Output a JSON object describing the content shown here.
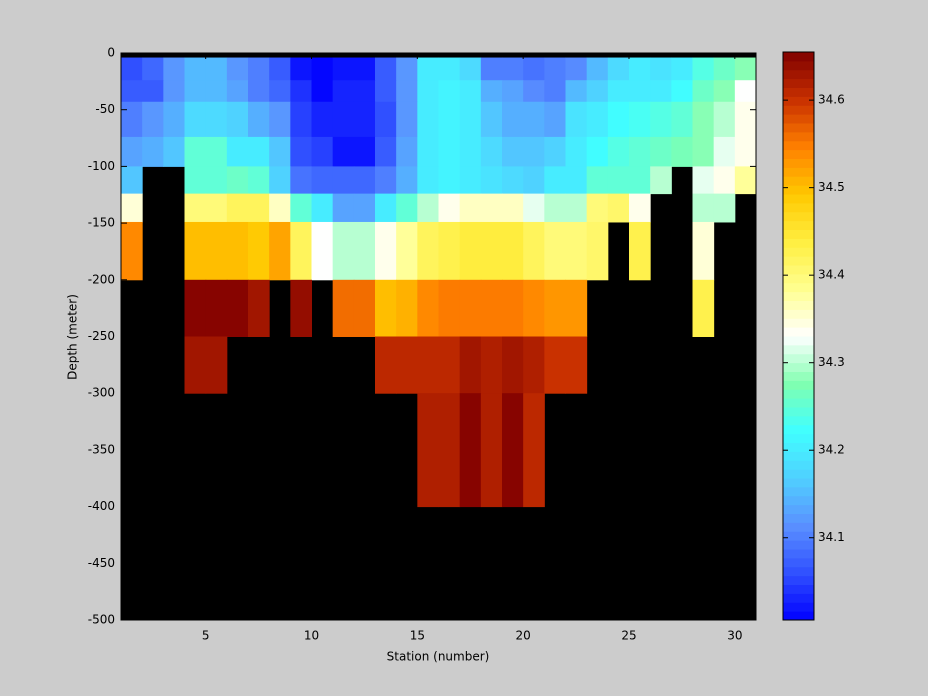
{
  "chart_data": {
    "type": "heatmap",
    "xlabel": "Station (number)",
    "ylabel": "Depth (meter)",
    "x": [
      1,
      2,
      3,
      4,
      5,
      6,
      7,
      8,
      9,
      10,
      11,
      12,
      13,
      14,
      15,
      16,
      17,
      18,
      19,
      20,
      21,
      22,
      23,
      24,
      25,
      26,
      27,
      28,
      29,
      30,
      31
    ],
    "y": [
      0,
      -4,
      -24,
      -43,
      -74,
      -100,
      -124,
      -149,
      -200,
      -250,
      -300,
      -400,
      -500
    ],
    "values": [
      [
        null,
        null,
        null,
        null,
        null,
        null,
        null,
        null,
        null,
        null,
        null,
        null,
        null,
        null,
        null,
        null,
        null,
        null,
        null,
        null,
        null,
        null,
        null,
        null,
        null,
        null,
        null,
        null,
        null,
        null
      ],
      [
        34.06,
        34.08,
        34.12,
        34.15,
        34.15,
        34.12,
        34.1,
        34.07,
        34.02,
        34.01,
        34.02,
        34.02,
        34.07,
        34.12,
        34.2,
        34.2,
        34.18,
        34.1,
        34.1,
        34.09,
        34.1,
        34.11,
        34.15,
        34.18,
        34.2,
        34.19,
        34.2,
        34.24,
        34.26,
        34.28
      ],
      [
        34.07,
        34.07,
        34.12,
        34.15,
        34.15,
        34.13,
        34.1,
        34.08,
        34.04,
        34.01,
        34.03,
        34.03,
        34.07,
        34.12,
        34.2,
        34.21,
        34.2,
        34.14,
        34.13,
        34.11,
        34.1,
        34.15,
        34.17,
        34.2,
        34.2,
        34.2,
        34.22,
        34.26,
        34.28,
        34.33
      ],
      [
        34.1,
        34.12,
        34.14,
        34.18,
        34.18,
        34.17,
        34.14,
        34.12,
        34.05,
        34.03,
        34.03,
        34.03,
        34.06,
        34.12,
        34.2,
        34.21,
        34.2,
        34.16,
        34.14,
        34.14,
        34.13,
        34.19,
        34.2,
        34.22,
        34.23,
        34.24,
        34.25,
        34.28,
        34.3,
        34.34
      ],
      [
        34.13,
        34.14,
        34.16,
        34.25,
        34.25,
        34.2,
        34.2,
        34.16,
        34.06,
        34.05,
        34.02,
        34.02,
        34.07,
        34.13,
        34.2,
        34.21,
        34.2,
        34.18,
        34.16,
        34.16,
        34.17,
        34.2,
        34.22,
        34.24,
        34.25,
        34.26,
        34.27,
        34.28,
        34.32,
        34.34
      ],
      [
        34.16,
        null,
        null,
        34.25,
        34.25,
        34.26,
        34.25,
        34.17,
        34.09,
        34.08,
        34.08,
        34.08,
        34.1,
        34.14,
        34.2,
        34.21,
        34.2,
        34.19,
        34.18,
        34.17,
        34.2,
        34.2,
        34.25,
        34.25,
        34.25,
        34.3,
        null,
        34.32,
        34.34,
        34.38
      ],
      [
        34.35,
        null,
        null,
        34.4,
        34.4,
        34.42,
        34.42,
        34.36,
        34.25,
        34.2,
        34.13,
        34.13,
        34.2,
        34.25,
        34.3,
        34.34,
        34.36,
        34.36,
        34.36,
        34.32,
        34.3,
        34.3,
        34.4,
        34.41,
        34.34,
        null,
        null,
        34.3,
        34.3,
        null
      ],
      [
        34.54,
        null,
        null,
        34.5,
        34.5,
        34.5,
        34.49,
        34.52,
        34.42,
        34.33,
        34.3,
        34.3,
        34.34,
        34.38,
        34.42,
        34.43,
        34.44,
        34.44,
        34.44,
        34.42,
        34.4,
        34.4,
        34.41,
        null,
        34.43,
        null,
        null,
        34.35,
        null,
        null
      ],
      [
        null,
        null,
        null,
        34.65,
        34.65,
        34.65,
        34.63,
        null,
        34.64,
        null,
        34.56,
        34.56,
        34.5,
        34.51,
        34.54,
        34.55,
        34.55,
        34.55,
        34.55,
        34.54,
        34.53,
        34.53,
        null,
        null,
        null,
        null,
        null,
        34.43,
        null,
        null
      ],
      [
        null,
        null,
        null,
        34.63,
        34.63,
        null,
        null,
        null,
        null,
        null,
        null,
        null,
        34.61,
        34.61,
        34.61,
        34.61,
        34.63,
        34.62,
        34.63,
        34.62,
        34.6,
        34.6,
        null,
        null,
        null,
        null,
        null,
        null,
        null,
        null
      ],
      [
        null,
        null,
        null,
        null,
        null,
        null,
        null,
        null,
        null,
        null,
        null,
        null,
        null,
        null,
        34.62,
        34.62,
        34.65,
        34.62,
        34.65,
        34.61,
        null,
        null,
        null,
        null,
        null,
        null,
        null,
        null,
        null,
        null
      ],
      [
        null,
        null,
        null,
        null,
        null,
        null,
        null,
        null,
        null,
        null,
        null,
        null,
        null,
        null,
        null,
        null,
        null,
        null,
        null,
        null,
        null,
        null,
        null,
        null,
        null,
        null,
        null,
        null,
        null,
        null
      ]
    ],
    "xlim": [
      1,
      31
    ],
    "ylim": [
      -500,
      0
    ],
    "xticks": [
      5,
      10,
      15,
      20,
      25,
      30
    ],
    "yticks": [
      -500,
      -450,
      -400,
      -350,
      -300,
      -250,
      -200,
      -150,
      -100,
      -50,
      0
    ],
    "clim": [
      34.006,
      34.655
    ],
    "cticks": [
      34.1,
      34.2,
      34.3,
      34.4,
      34.5,
      34.6
    ],
    "colormap": [
      "#0000ff",
      "#3050ff",
      "#5a90ff",
      "#50d0ff",
      "#40ffff",
      "#80ffb0",
      "#ffffff",
      "#ffff90",
      "#ffee40",
      "#ffc800",
      "#ff8000",
      "#c83000",
      "#800000"
    ],
    "missing_color": "#000000"
  }
}
